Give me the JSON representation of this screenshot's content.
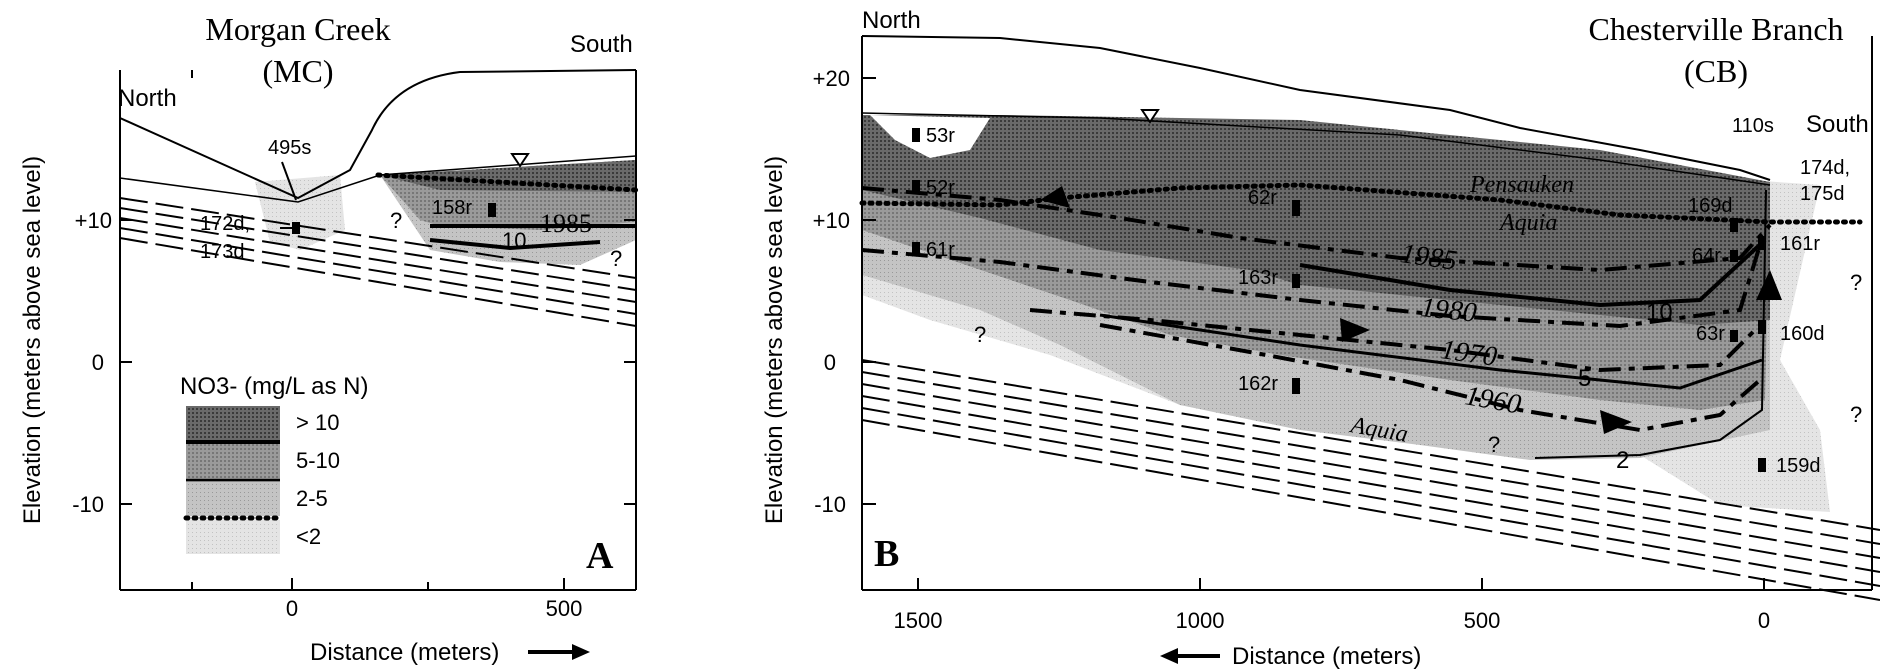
{
  "panel_a": {
    "title_line1": "Morgan Creek",
    "title_line2": "(MC)",
    "north": "North",
    "south": "South",
    "letter": "A",
    "wells": [
      "495s",
      "172d,",
      "173d",
      "158r"
    ],
    "isochron": "1985",
    "contour_10": "10",
    "question": "?",
    "ylabel": "Elevation (meters above sea level)",
    "xlabel": "Distance (meters)",
    "yticks": [
      "+10",
      "0",
      "-10"
    ],
    "xticks": [
      "0",
      "500"
    ]
  },
  "legend": {
    "title": "NO3- (mg/L as N)",
    "items": [
      {
        "label": "> 10",
        "pattern": "darkest"
      },
      {
        "label": "5-10",
        "pattern": "dark"
      },
      {
        "label": "2-5",
        "pattern": "medium"
      },
      {
        "label": "<2",
        "pattern": "light"
      }
    ]
  },
  "panel_b": {
    "title_line1": "Chesterville Branch",
    "title_line2": "(CB)",
    "north": "North",
    "south": "South",
    "letter": "B",
    "wells": [
      "53r",
      "52r",
      "62r",
      "61r",
      "163r",
      "162r",
      "110s",
      "174d,",
      "175d",
      "169d",
      "64r",
      "161r",
      "63r",
      "160d",
      "159d"
    ],
    "formations": {
      "pensauken": "Pensauken",
      "aquia_upper": "Aquia",
      "aquia_lower": "Aquia"
    },
    "isochrons": [
      "1985",
      "1980",
      "1970",
      "1960"
    ],
    "contours": [
      "10",
      "5",
      "2"
    ],
    "question": "?",
    "ylabel": "Elevation (meters above sea level)",
    "xlabel": "Distance (meters)",
    "yticks": [
      "+20",
      "+10",
      "0",
      "-10"
    ],
    "xticks": [
      "1500",
      "1000",
      "500",
      "0"
    ]
  },
  "colors": {
    "ink": "#000000",
    "darkest": "#5a5a5a",
    "dark": "#8c8c8c",
    "medium": "#b5b5b5",
    "light": "#dedede"
  }
}
